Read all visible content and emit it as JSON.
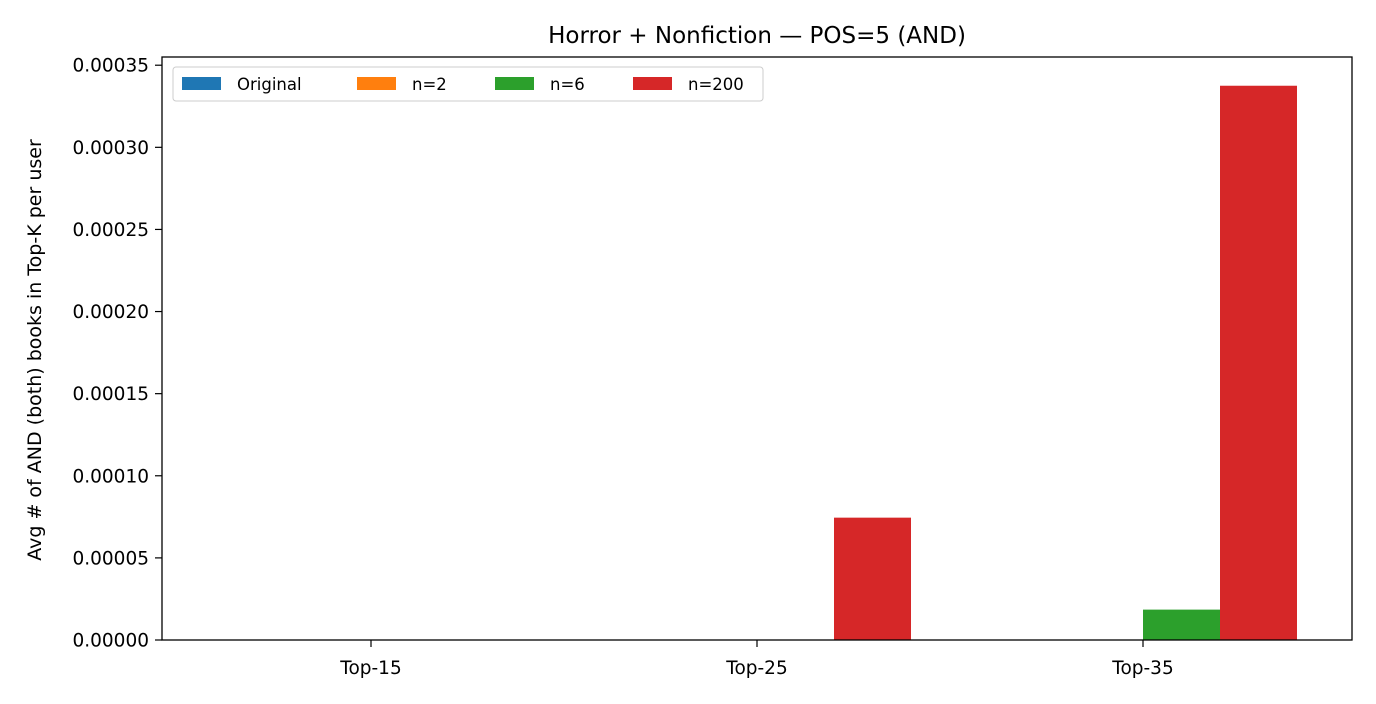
{
  "chart_data": {
    "type": "bar",
    "title": "Horror + Nonfiction — POS=5 (AND)",
    "xlabel": "",
    "ylabel": "Avg # of AND (both) books in Top-K per user",
    "categories": [
      "Top-15",
      "Top-25",
      "Top-35"
    ],
    "series": [
      {
        "name": "Original",
        "color": "#1f77b4",
        "values": [
          0,
          0,
          0
        ]
      },
      {
        "name": "n=2",
        "color": "#ff7f0e",
        "values": [
          0,
          0,
          0
        ]
      },
      {
        "name": "n=6",
        "color": "#2ca02c",
        "values": [
          0,
          0,
          1.85e-05
        ]
      },
      {
        "name": "n=200",
        "color": "#d62728",
        "values": [
          0,
          7.45e-05,
          0.0003375
        ]
      }
    ],
    "ylim": [
      0,
      0.000355
    ],
    "yticks": [
      "0.00000",
      "0.00005",
      "0.00010",
      "0.00015",
      "0.00020",
      "0.00025",
      "0.00030",
      "0.00035"
    ],
    "ytick_values": [
      0,
      5e-05,
      0.0001,
      0.00015,
      0.0002,
      0.00025,
      0.0003,
      0.00035
    ],
    "legend": {
      "placement": "top-left",
      "columns": 4
    },
    "grid": false
  }
}
